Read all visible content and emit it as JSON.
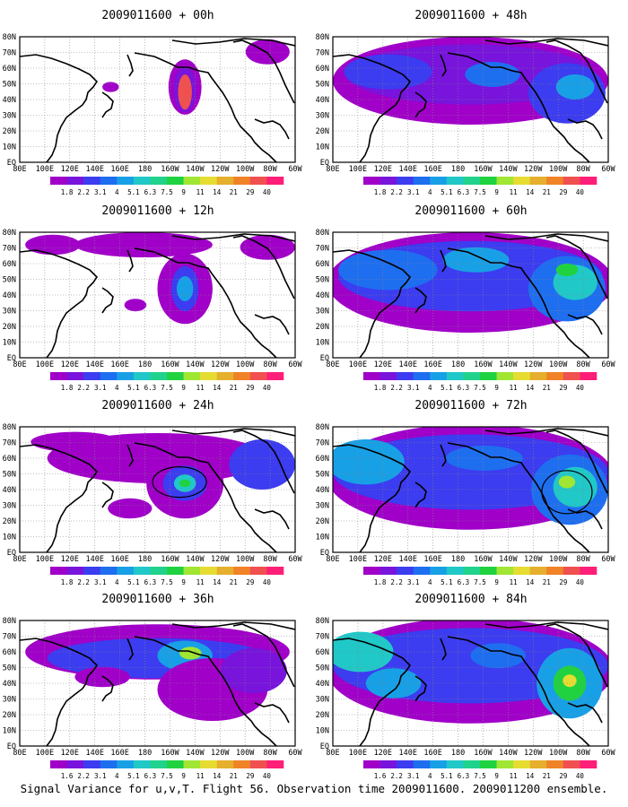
{
  "caption": "Signal Variance for u,v,T. Flight 56. Observation time 2009011600. 2009011200 ensemble.",
  "lat_labels": [
    "80N",
    "70N",
    "60N",
    "50N",
    "40N",
    "30N",
    "20N",
    "10N",
    "EQ"
  ],
  "lon_labels": [
    "80E",
    "100E",
    "120E",
    "140E",
    "160E",
    "180",
    "160W",
    "140W",
    "120W",
    "100W",
    "80W",
    "60W"
  ],
  "colorbar": {
    "labels": [
      "1.8",
      "2.2",
      "3.1",
      "4",
      "5.1",
      "6.3",
      "7.5",
      "9",
      "11",
      "14",
      "21",
      "29",
      "40"
    ],
    "colors": [
      "#a000c8",
      "#7814dc",
      "#3c3cf0",
      "#1e6ef0",
      "#18a0e6",
      "#20c8c8",
      "#20d28c",
      "#20d240",
      "#a0e632",
      "#e6dc32",
      "#e6af2d",
      "#f08228",
      "#f05050",
      "#ff1e78"
    ]
  },
  "panels": [
    {
      "title": "2009011600 + 00h",
      "col": 0,
      "row": 0,
      "cbar_labels": [
        "1.8",
        "2.2",
        "3.1",
        "4",
        "5.1",
        "6.3",
        "7.5",
        "9",
        "11",
        "14",
        "21",
        "29",
        "40"
      ]
    },
    {
      "title": "2009011600 + 12h",
      "col": 0,
      "row": 1,
      "cbar_labels": [
        "1.8",
        "2.2",
        "3.1",
        "4",
        "5.1",
        "6.3",
        "7.5",
        "9",
        "11",
        "14",
        "21",
        "29",
        "40"
      ]
    },
    {
      "title": "2009011600 + 24h",
      "col": 0,
      "row": 2,
      "cbar_labels": [
        "1.8",
        "2.2",
        "3.1",
        "4",
        "5.1",
        "6.3",
        "7.5",
        "9",
        "11",
        "14",
        "21",
        "29",
        "40"
      ]
    },
    {
      "title": "2009011600 + 36h",
      "col": 0,
      "row": 3,
      "cbar_labels": [
        "1.6",
        "2.2",
        "3.1",
        "4",
        "5.1",
        "6.3",
        "7.5",
        "9",
        "11",
        "14",
        "21",
        "29",
        "40"
      ]
    },
    {
      "title": "2009011600 + 48h",
      "col": 1,
      "row": 0,
      "cbar_labels": [
        "1.8",
        "2.2",
        "3.1",
        "4",
        "5.1",
        "6.3",
        "7.5",
        "9",
        "11",
        "14",
        "21",
        "29",
        "40"
      ]
    },
    {
      "title": "2009011600 + 60h",
      "col": 1,
      "row": 1,
      "cbar_labels": [
        "1.8",
        "2.2",
        "3.1",
        "4",
        "5.1",
        "6.3",
        "7.5",
        "9",
        "11",
        "14",
        "21",
        "29",
        "40"
      ]
    },
    {
      "title": "2009011600 + 72h",
      "col": 1,
      "row": 2,
      "cbar_labels": [
        "1.8",
        "2.2",
        "3.1",
        "4",
        "5.1",
        "6.3",
        "7.5",
        "9",
        "11",
        "14",
        "21",
        "29",
        "40"
      ]
    },
    {
      "title": "2009011600 + 84h",
      "col": 1,
      "row": 3,
      "cbar_labels": [
        "1.6",
        "2.2",
        "3.1",
        "4",
        "5.1",
        "6.3",
        "7.5",
        "9",
        "11",
        "14",
        "21",
        "29",
        "40"
      ]
    }
  ]
}
